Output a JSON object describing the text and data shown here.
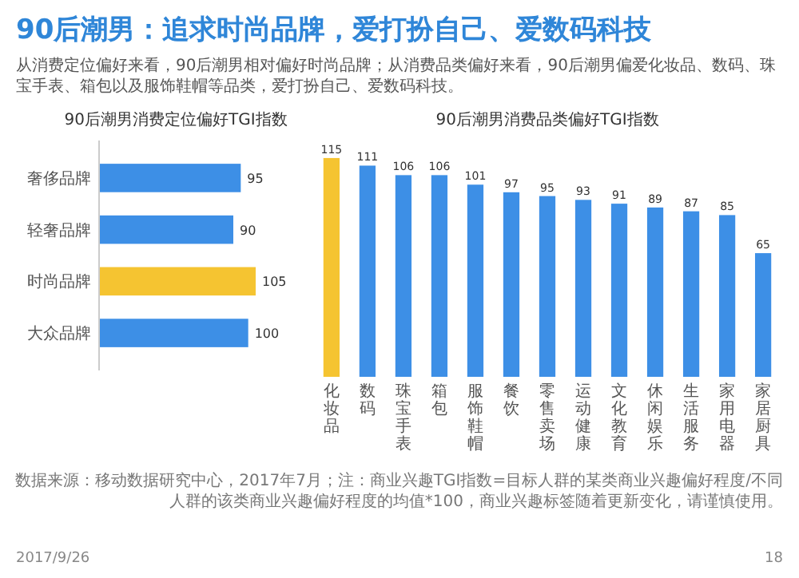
{
  "chart_data": [
    {
      "type": "other",
      "title": "90后潮男：追求时尚品牌，爱打扮自己、爱数码科技",
      "subtitle": "从消费定位偏好来看，90后潮男相对偏好时尚品牌；从消费品类偏好来看，90后潮男偏爱化妆品、数码、珠宝手表、箱包以及服饰鞋帽等品类，爱打扮自己、爱数码科技。",
      "annotations": [
        "数据来源：移动数据研究中心，2017年7月；注：商业兴趣TGI指数=目标人群的某类商业兴趣偏好程度/不同人群的该类商业兴趣偏好程度的均值*100，商业兴趣标签随着更新变化，请谨慎使用。",
        "2017/9/26",
        "18"
      ]
    },
    {
      "type": "bar",
      "orientation": "horizontal",
      "title": "90后潮男消费定位偏好TGI指数",
      "categories": [
        "奢侈品牌",
        "轻奢品牌",
        "时尚品牌",
        "大众品牌"
      ],
      "values": [
        95,
        90,
        105,
        100
      ],
      "colors": [
        "#3d8fe6",
        "#3d8fe6",
        "#f5c431",
        "#3d8fe6"
      ],
      "data_labels": true
    },
    {
      "type": "bar",
      "title": "90后潮男消费品类偏好TGI指数",
      "categories": [
        "化妆品",
        "数码",
        "珠宝手表",
        "箱包",
        "服饰鞋帽",
        "餐饮",
        "零售卖场",
        "运动健康",
        "文化教育",
        "休闲娱乐",
        "生活服务",
        "家用电器",
        "家居厨具"
      ],
      "values": [
        115,
        111,
        106,
        106,
        101,
        97,
        95,
        93,
        91,
        89,
        87,
        85,
        65
      ],
      "colors": [
        "#f5c431",
        "#3d8fe6",
        "#3d8fe6",
        "#3d8fe6",
        "#3d8fe6",
        "#3d8fe6",
        "#3d8fe6",
        "#3d8fe6",
        "#3d8fe6",
        "#3d8fe6",
        "#3d8fe6",
        "#3d8fe6",
        "#3d8fe6"
      ],
      "data_labels": true
    }
  ]
}
